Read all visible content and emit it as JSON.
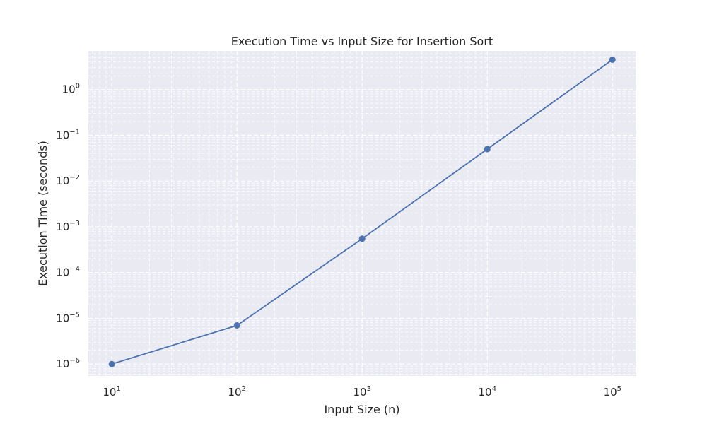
{
  "chart_data": {
    "type": "line",
    "title": "Execution Time vs Input Size for Insertion Sort",
    "xlabel": "Input Size (n)",
    "ylabel": "Execution Time (seconds)",
    "xscale": "log",
    "yscale": "log",
    "xlim": [
      6.5,
      155000
    ],
    "ylim": [
      5.5e-07,
      7.0
    ],
    "grid": true,
    "grid_style": "dashed, major and minor",
    "marker": "circle",
    "x_ticks": [
      {
        "base": "10",
        "exp": "1"
      },
      {
        "base": "10",
        "exp": "2"
      },
      {
        "base": "10",
        "exp": "3"
      },
      {
        "base": "10",
        "exp": "4"
      },
      {
        "base": "10",
        "exp": "5"
      }
    ],
    "y_ticks": [
      {
        "base": "10",
        "exp": "−6"
      },
      {
        "base": "10",
        "exp": "−5"
      },
      {
        "base": "10",
        "exp": "−4"
      },
      {
        "base": "10",
        "exp": "−3"
      },
      {
        "base": "10",
        "exp": "−2"
      },
      {
        "base": "10",
        "exp": "−1"
      },
      {
        "base": "10",
        "exp": "0"
      }
    ],
    "series": [
      {
        "x": [
          10,
          100,
          1000,
          10000,
          100000
        ],
        "values": [
          1e-06,
          7e-06,
          0.00055,
          0.05,
          4.5
        ]
      }
    ],
    "colors": {
      "line": "#4c72b0",
      "plot_background": "#eaeaf2",
      "grid": "#ffffff"
    }
  }
}
